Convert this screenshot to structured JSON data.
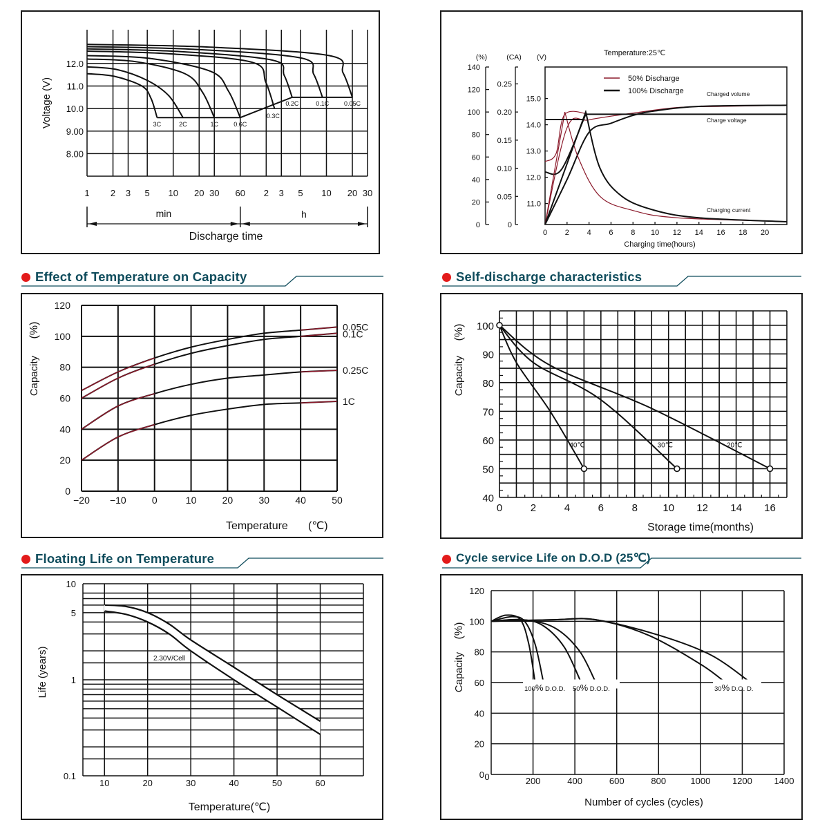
{
  "colors": {
    "title": "#0f4c5c",
    "bullet": "#e31b1b",
    "red_curve": "#8b1a2b",
    "ink": "#111111"
  },
  "sections": {
    "temp_capacity": "Effect of Temperature on Capacity",
    "self_discharge": "Self-discharge characteristics",
    "floating_life": "Floating Life on Temperature",
    "cycle_life": "Cycle service Life on D.O.D (25℃)"
  },
  "chart_data": [
    {
      "id": "discharge",
      "type": "line",
      "title": "",
      "xlabel": "Discharge time",
      "ylabel": "Voltage (V)",
      "y_ticks": [
        "12.0",
        "11.0",
        "10.0",
        "9.00",
        "8.00"
      ],
      "x_ticks": [
        "1",
        "2",
        "3",
        "5",
        "10",
        "20",
        "30",
        "60",
        "2",
        "3",
        "5",
        "10",
        "20",
        "30"
      ],
      "x_unit_labels": [
        "min",
        "h"
      ],
      "ylim": [
        7.0,
        13.5
      ],
      "series": [
        {
          "name": "3C",
          "end_minutes": 6.5,
          "start_v": 11.55,
          "end_v": 9.6
        },
        {
          "name": "2C",
          "end_minutes": 13,
          "start_v": 11.85,
          "end_v": 9.6
        },
        {
          "name": "1C",
          "end_minutes": 30,
          "start_v": 12.2,
          "end_v": 9.6
        },
        {
          "name": "0.6C",
          "end_minutes": 60,
          "start_v": 12.35,
          "end_v": 9.6
        },
        {
          "name": "0.3C",
          "end_minutes": 150,
          "start_v": 12.55,
          "end_v": 10.0
        },
        {
          "name": "0.2C",
          "end_minutes": 240,
          "start_v": 12.65,
          "end_v": 10.5
        },
        {
          "name": "0.1C",
          "end_minutes": 540,
          "start_v": 12.75,
          "end_v": 10.5
        },
        {
          "name": "0.05C",
          "end_minutes": 1200,
          "start_v": 12.85,
          "end_v": 10.5
        }
      ]
    },
    {
      "id": "charging",
      "type": "line",
      "title": "Temperature:25℃",
      "xlabel": "Charging time(hours)",
      "axis_units": [
        "(%)",
        "(CA)",
        "(V)"
      ],
      "pct_ticks": [
        "0",
        "20",
        "40",
        "60",
        "80",
        "100",
        "120",
        "140"
      ],
      "ca_ticks": [
        "0",
        "0.05",
        "0.10",
        "0.15",
        "0.20",
        "0.25"
      ],
      "v_ticks": [
        "11.0",
        "12.0",
        "13.0",
        "14.0",
        "15.0"
      ],
      "x_ticks": [
        "0",
        "2",
        "4",
        "6",
        "8",
        "10",
        "12",
        "14",
        "16",
        "18",
        "20"
      ],
      "xlim": [
        0,
        22
      ],
      "legend": [
        "50% Discharge",
        "100% Discharge"
      ],
      "annotations": [
        "Charged volume",
        "Charge voltage",
        "Charging current"
      ],
      "series": [
        {
          "name": "50% Discharge - charged volume (%)",
          "x": [
            0,
            2,
            4,
            8,
            12,
            16,
            22
          ],
          "y": [
            0,
            86,
            93,
            99,
            104,
            105,
            106
          ]
        },
        {
          "name": "100% Discharge - charged volume (%)",
          "x": [
            0,
            2,
            4,
            6,
            8,
            10,
            14,
            22
          ],
          "y": [
            0,
            40,
            82,
            90,
            97,
            101,
            105,
            106
          ]
        },
        {
          "name": "50% Discharge - charge voltage (V)",
          "x": [
            0,
            1,
            1.8,
            4,
            22
          ],
          "y": [
            12.6,
            12.9,
            14.4,
            14.4,
            14.4
          ]
        },
        {
          "name": "100% Discharge - charge voltage (V)",
          "x": [
            0,
            1.5,
            3.7,
            22
          ],
          "y": [
            12.2,
            12.3,
            14.4,
            14.4
          ]
        },
        {
          "name": "50% Discharge - charging current (CA)",
          "x": [
            0,
            1.8,
            3,
            5,
            8,
            12,
            22
          ],
          "y": [
            0,
            0.2,
            0.12,
            0.05,
            0.025,
            0.012,
            0.005
          ]
        },
        {
          "name": "100% Discharge - charging current (CA)",
          "x": [
            0,
            3.7,
            5,
            7,
            10,
            14,
            22
          ],
          "y": [
            0,
            0.2,
            0.1,
            0.05,
            0.025,
            0.012,
            0.005
          ]
        }
      ]
    },
    {
      "id": "temp_capacity",
      "type": "line",
      "xlabel": "Temperature (℃)",
      "ylabel": "Capacity (%)",
      "x_ticks": [
        "−20",
        "−10",
        "0",
        "10",
        "20",
        "30",
        "40",
        "50"
      ],
      "y_ticks": [
        "0",
        "20",
        "40",
        "60",
        "80",
        "100",
        "120"
      ],
      "xlim": [
        -20,
        50
      ],
      "ylim": [
        0,
        120
      ],
      "series": [
        {
          "name": "0.05C",
          "x": [
            -20,
            -10,
            0,
            10,
            20,
            30,
            40,
            50
          ],
          "y": [
            65,
            77,
            86,
            93,
            98,
            102,
            104,
            106
          ]
        },
        {
          "name": "0.1C",
          "x": [
            -20,
            -10,
            0,
            10,
            20,
            30,
            40,
            50
          ],
          "y": [
            60,
            73,
            82,
            89,
            94,
            98,
            100,
            102
          ]
        },
        {
          "name": "0.25C",
          "x": [
            -20,
            -10,
            0,
            10,
            20,
            30,
            40,
            50
          ],
          "y": [
            40,
            55,
            63,
            69,
            73,
            75,
            77,
            78
          ]
        },
        {
          "name": "1C",
          "x": [
            -20,
            -10,
            0,
            10,
            20,
            30,
            40,
            50
          ],
          "y": [
            20,
            35,
            43,
            49,
            53,
            56,
            57,
            58
          ]
        }
      ]
    },
    {
      "id": "self_discharge",
      "type": "line",
      "xlabel": "Storage time(months)",
      "ylabel": "Capacity (%)",
      "x_ticks": [
        "0",
        "2",
        "4",
        "6",
        "8",
        "10",
        "12",
        "14",
        "16"
      ],
      "y_ticks": [
        "40",
        "50",
        "60",
        "70",
        "80",
        "90",
        "100"
      ],
      "xlim": [
        0,
        17
      ],
      "ylim": [
        40,
        105
      ],
      "series": [
        {
          "name": "40℃",
          "x": [
            0,
            1,
            3,
            5
          ],
          "y": [
            100,
            87,
            70,
            50
          ]
        },
        {
          "name": "30℃",
          "x": [
            0,
            2,
            6,
            10.5
          ],
          "y": [
            100,
            87,
            74,
            50
          ]
        },
        {
          "name": "20℃",
          "x": [
            0,
            3,
            9,
            16
          ],
          "y": [
            100,
            86,
            71,
            50
          ]
        }
      ]
    },
    {
      "id": "floating_life",
      "type": "line",
      "xlabel": "Temperature(℃)",
      "ylabel": "Life (years)",
      "x_ticks": [
        "10",
        "20",
        "30",
        "40",
        "50",
        "60"
      ],
      "y_ticks": [
        "0.1",
        "1",
        "5",
        "10"
      ],
      "y_scale": "log",
      "xlim": [
        5,
        70
      ],
      "ylim": [
        0.1,
        10
      ],
      "annotation": "2.30V/Cell",
      "series": [
        {
          "name": "upper",
          "x": [
            10,
            15,
            20,
            25,
            30,
            40,
            50,
            60
          ],
          "y": [
            6.0,
            5.8,
            5.0,
            3.8,
            2.6,
            1.35,
            0.7,
            0.37
          ]
        },
        {
          "name": "lower",
          "x": [
            10,
            15,
            20,
            25,
            30,
            40,
            50,
            60
          ],
          "y": [
            5.2,
            4.8,
            4.0,
            3.0,
            2.0,
            1.0,
            0.52,
            0.27
          ]
        }
      ]
    },
    {
      "id": "cycle_life",
      "type": "line",
      "xlabel": "Number of cycles (cycles)",
      "ylabel": "Capacity (%)",
      "x_ticks": [
        "0",
        "200",
        "400",
        "600",
        "800",
        "1000",
        "1200",
        "1400"
      ],
      "y_ticks": [
        "0",
        "20",
        "40",
        "60",
        "80",
        "100",
        "120"
      ],
      "xlim": [
        0,
        1400
      ],
      "ylim": [
        0,
        120
      ],
      "labels": [
        {
          "pct": "100",
          "suffix": "D.O.D."
        },
        {
          "pct": "50",
          "suffix": "D.O.D."
        },
        {
          "pct": "30",
          "suffix": "D.O. D."
        }
      ],
      "series": [
        {
          "name": "100% D.O.D. a",
          "x": [
            0,
            70,
            140,
            180,
            210
          ],
          "y": [
            100,
            104,
            101,
            85,
            60
          ]
        },
        {
          "name": "100% D.O.D. b",
          "x": [
            0,
            100,
            160,
            210,
            250
          ],
          "y": [
            100,
            103,
            100,
            85,
            60
          ]
        },
        {
          "name": "50% D.O.D. a",
          "x": [
            0,
            150,
            250,
            350,
            430
          ],
          "y": [
            100,
            101,
            97,
            83,
            60
          ]
        },
        {
          "name": "50% D.O.D. b",
          "x": [
            0,
            150,
            300,
            420,
            500
          ],
          "y": [
            100,
            101,
            96,
            81,
            60
          ]
        },
        {
          "name": "30% D.O.D. a",
          "x": [
            0,
            300,
            500,
            750,
            1000,
            1120
          ],
          "y": [
            100,
            101,
            101,
            91,
            72,
            60
          ]
        },
        {
          "name": "30% D.O.D. b",
          "x": [
            0,
            300,
            500,
            800,
            1050,
            1240
          ],
          "y": [
            100,
            101,
            101,
            91,
            78,
            60
          ]
        }
      ]
    }
  ]
}
